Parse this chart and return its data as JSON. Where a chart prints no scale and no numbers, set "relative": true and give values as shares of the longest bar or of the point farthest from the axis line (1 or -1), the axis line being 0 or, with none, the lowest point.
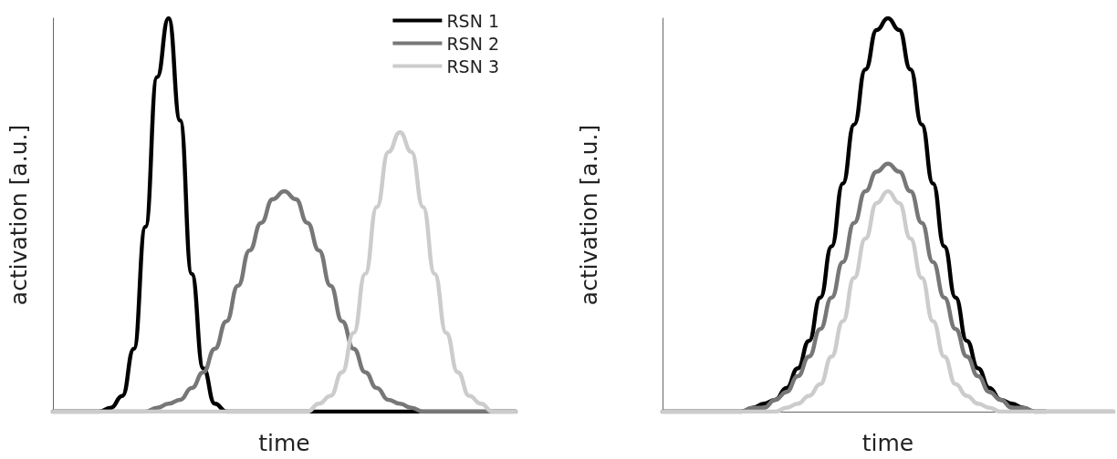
{
  "chart_data": [
    {
      "type": "line",
      "relative": true,
      "xlabel": "time",
      "ylabel": "activation [a.u.]",
      "legend": "top right",
      "marker": "none",
      "line_style": "solid",
      "grid": false,
      "categories": [
        null,
        null,
        null,
        null,
        null,
        null,
        null,
        null,
        null,
        null,
        null,
        null,
        null,
        null,
        null,
        null,
        null,
        null,
        null,
        null,
        null,
        null,
        null,
        null,
        null,
        null,
        null,
        null,
        null,
        null,
        null,
        null,
        null,
        null,
        null,
        null,
        null,
        null,
        null,
        null,
        null
      ],
      "series": [
        {
          "name": "RSN 1",
          "color": "#000000",
          "values": [
            0,
            0,
            0,
            0,
            0,
            0.01,
            0.04,
            0.16,
            0.47,
            0.85,
            1,
            0.74,
            0.35,
            0.11,
            0.02,
            0,
            0,
            0,
            0,
            0,
            0,
            0,
            0,
            0,
            0,
            0,
            0,
            0,
            0,
            0,
            0,
            0,
            0,
            0,
            0,
            0,
            0,
            0,
            0,
            0,
            0
          ]
        },
        {
          "name": "RSN 2",
          "color": "#777777",
          "values": [
            0,
            0,
            0,
            0,
            0,
            0,
            0,
            0,
            0,
            0.01,
            0.02,
            0.03,
            0.06,
            0.1,
            0.16,
            0.23,
            0.32,
            0.41,
            0.48,
            0.54,
            0.56,
            0.54,
            0.48,
            0.41,
            0.32,
            0.23,
            0.16,
            0.1,
            0.06,
            0.03,
            0.02,
            0.01,
            0,
            0,
            0,
            0,
            0,
            0,
            0,
            0,
            0
          ]
        },
        {
          "name": "RSN 3",
          "color": "#cccccc",
          "values": [
            0,
            0,
            0,
            0,
            0,
            0,
            0,
            0,
            0,
            0,
            0,
            0,
            0,
            0,
            0,
            0,
            0,
            0,
            0,
            0,
            0,
            0,
            0,
            0.02,
            0.04,
            0.1,
            0.2,
            0.35,
            0.52,
            0.66,
            0.71,
            0.66,
            0.52,
            0.35,
            0.2,
            0.1,
            0.04,
            0.02,
            0,
            0,
            0
          ]
        }
      ]
    },
    {
      "type": "line",
      "relative": true,
      "xlabel": "time",
      "ylabel": "activation [a.u.]",
      "marker": "none",
      "line_style": "solid",
      "grid": false,
      "categories": [
        null,
        null,
        null,
        null,
        null,
        null,
        null,
        null,
        null,
        null,
        null,
        null,
        null,
        null,
        null,
        null,
        null,
        null,
        null,
        null,
        null,
        null,
        null,
        null,
        null,
        null,
        null,
        null,
        null,
        null,
        null,
        null,
        null,
        null,
        null,
        null,
        null,
        null,
        null,
        null,
        null
      ],
      "series": [
        {
          "color": "#000000",
          "values": [
            0,
            0,
            0,
            0,
            0,
            0,
            0,
            0,
            0.01,
            0.02,
            0.03,
            0.06,
            0.11,
            0.18,
            0.29,
            0.42,
            0.58,
            0.73,
            0.87,
            0.97,
            1,
            0.97,
            0.87,
            0.73,
            0.58,
            0.42,
            0.29,
            0.18,
            0.11,
            0.06,
            0.03,
            0.02,
            0.01,
            0,
            0,
            null,
            null,
            null,
            null,
            null,
            null
          ]
        },
        {
          "color": "#777777",
          "values": [
            0,
            0,
            0,
            0,
            0,
            0,
            0,
            0,
            0.01,
            0.01,
            0.03,
            0.05,
            0.09,
            0.14,
            0.21,
            0.29,
            0.38,
            0.48,
            0.56,
            0.61,
            0.63,
            0.61,
            0.56,
            0.48,
            0.38,
            0.29,
            0.21,
            0.14,
            0.09,
            0.05,
            0.03,
            0.01,
            0.01,
            0,
            0,
            0,
            0,
            0,
            0,
            0,
            0
          ]
        },
        {
          "color": "#cccccc",
          "values": [
            0,
            0,
            0,
            0,
            0,
            0,
            0,
            0,
            0,
            0,
            0,
            0.01,
            0.02,
            0.04,
            0.07,
            0.14,
            0.23,
            0.34,
            0.44,
            0.53,
            0.56,
            0.53,
            0.44,
            0.34,
            0.23,
            0.14,
            0.07,
            0.04,
            0.02,
            0.01,
            0,
            0,
            0,
            0,
            0,
            0,
            0,
            0,
            0,
            0,
            0
          ]
        }
      ]
    }
  ]
}
